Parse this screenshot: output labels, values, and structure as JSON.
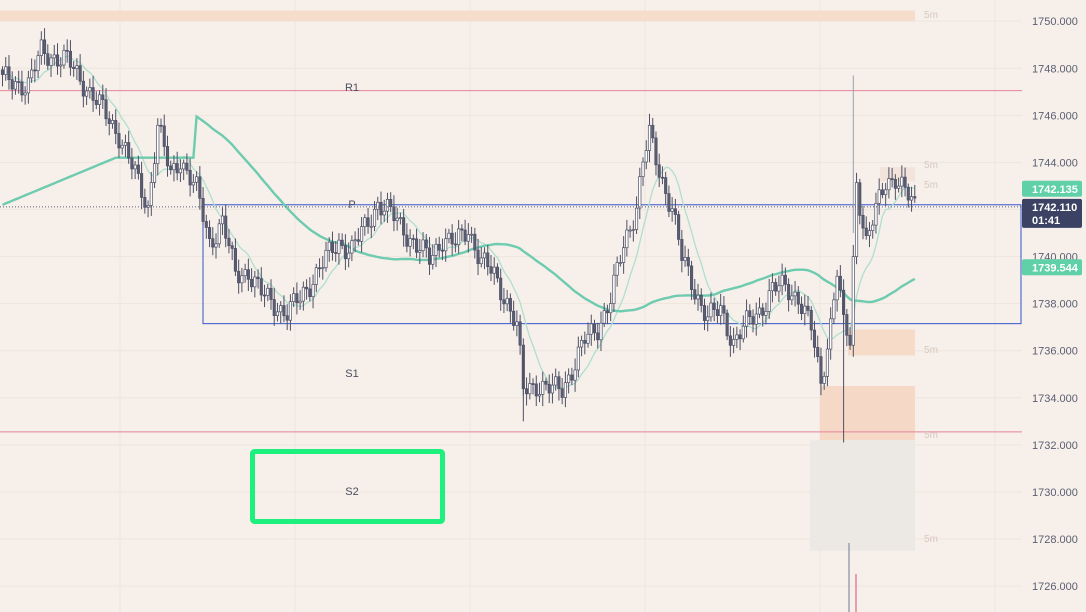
{
  "chart_data": {
    "type": "candlestick",
    "symbol_timeframe": "5m",
    "y_axis": {
      "ylim": [
        1724.9,
        1750.9
      ],
      "ticks": [
        "1750.000",
        "1748.000",
        "1746.000",
        "1744.000",
        "1742.000",
        "1740.000",
        "1738.000",
        "1736.000",
        "1734.000",
        "1732.000",
        "1730.000",
        "1728.000",
        "1726.000"
      ]
    },
    "price_tags": {
      "last_price": "1742.110",
      "countdown": "01:41",
      "ma_fast": "1742.135",
      "ma_slow": "1739.544"
    },
    "levels": [
      {
        "label": "R1",
        "price": 1747.05
      },
      {
        "label": "P",
        "price": 1742.2
      },
      {
        "label": "S1",
        "price": 1732.55
      },
      {
        "label": "S2",
        "price": 1729.9
      }
    ],
    "range_box": {
      "price_top": 1742.2,
      "price_bottom": 1737.15
    },
    "timeframe_label": "5m",
    "colors": {
      "background": "#f7efe9",
      "candle_up": "#ffffff",
      "candle_down": "#5a5d73",
      "ma_fast": "#aee0cf",
      "ma_slow": "#6dcbb0",
      "resistance_line": "#e3839a",
      "range_box": "#3355cc",
      "highlight_box": "#1ef07d",
      "axis_text": "#5a5f73"
    },
    "anchors": [
      {
        "i": 0,
        "c": 1747.5
      },
      {
        "i": 8,
        "c": 1747.3
      },
      {
        "i": 12,
        "c": 1748.7
      },
      {
        "i": 20,
        "c": 1748.3
      },
      {
        "i": 25,
        "c": 1747.4
      },
      {
        "i": 30,
        "c": 1746.4
      },
      {
        "i": 36,
        "c": 1745.2
      },
      {
        "i": 40,
        "c": 1743.8
      },
      {
        "i": 45,
        "c": 1742.1
      },
      {
        "i": 48,
        "c": 1745.6
      },
      {
        "i": 52,
        "c": 1743.4
      },
      {
        "i": 55,
        "c": 1744.2
      },
      {
        "i": 60,
        "c": 1742.8
      },
      {
        "i": 64,
        "c": 1740.6
      },
      {
        "i": 68,
        "c": 1741.5
      },
      {
        "i": 72,
        "c": 1739.2
      },
      {
        "i": 76,
        "c": 1739.4
      },
      {
        "i": 80,
        "c": 1738.4
      },
      {
        "i": 84,
        "c": 1738.0
      },
      {
        "i": 88,
        "c": 1737.6
      },
      {
        "i": 92,
        "c": 1738.2
      },
      {
        "i": 96,
        "c": 1739.1
      },
      {
        "i": 100,
        "c": 1739.9
      },
      {
        "i": 104,
        "c": 1740.6
      },
      {
        "i": 108,
        "c": 1740.3
      },
      {
        "i": 112,
        "c": 1741.2
      },
      {
        "i": 116,
        "c": 1742.3
      },
      {
        "i": 120,
        "c": 1741.8
      },
      {
        "i": 124,
        "c": 1741.2
      },
      {
        "i": 128,
        "c": 1740.4
      },
      {
        "i": 132,
        "c": 1739.9
      },
      {
        "i": 136,
        "c": 1740.8
      },
      {
        "i": 140,
        "c": 1740.5
      },
      {
        "i": 144,
        "c": 1741.2
      },
      {
        "i": 148,
        "c": 1739.8
      },
      {
        "i": 152,
        "c": 1739.2
      },
      {
        "i": 156,
        "c": 1738.1
      },
      {
        "i": 159,
        "c": 1737.0
      },
      {
        "i": 161,
        "c": 1734.3
      },
      {
        "i": 165,
        "c": 1734.6
      },
      {
        "i": 170,
        "c": 1734.3
      },
      {
        "i": 173,
        "c": 1734.4
      },
      {
        "i": 176,
        "c": 1735.2
      },
      {
        "i": 180,
        "c": 1736.4
      },
      {
        "i": 184,
        "c": 1737.0
      },
      {
        "i": 188,
        "c": 1738.2
      },
      {
        "i": 192,
        "c": 1740.4
      },
      {
        "i": 196,
        "c": 1742.2
      },
      {
        "i": 198,
        "c": 1744.1
      },
      {
        "i": 200,
        "c": 1745.1
      },
      {
        "i": 203,
        "c": 1743.6
      },
      {
        "i": 207,
        "c": 1742.1
      },
      {
        "i": 210,
        "c": 1739.9
      },
      {
        "i": 214,
        "c": 1738.6
      },
      {
        "i": 218,
        "c": 1737.4
      },
      {
        "i": 222,
        "c": 1737.7
      },
      {
        "i": 226,
        "c": 1736.4
      },
      {
        "i": 230,
        "c": 1737.1
      },
      {
        "i": 234,
        "c": 1737.7
      },
      {
        "i": 238,
        "c": 1738.6
      },
      {
        "i": 242,
        "c": 1738.7
      },
      {
        "i": 246,
        "c": 1738.3
      },
      {
        "i": 250,
        "c": 1736.9
      },
      {
        "i": 253,
        "c": 1734.6
      },
      {
        "i": 256,
        "c": 1737.2
      },
      {
        "i": 258,
        "c": 1739.4
      },
      {
        "i": 260,
        "c": 1737.0
      },
      {
        "i": 262,
        "c": 1736.4
      },
      {
        "i": 264,
        "c": 1743.2
      },
      {
        "i": 267,
        "c": 1740.6
      },
      {
        "i": 270,
        "c": 1741.9
      },
      {
        "i": 273,
        "c": 1743.2
      },
      {
        "i": 276,
        "c": 1743.4
      },
      {
        "i": 279,
        "c": 1742.7
      },
      {
        "i": 282,
        "c": 1742.1
      }
    ]
  }
}
